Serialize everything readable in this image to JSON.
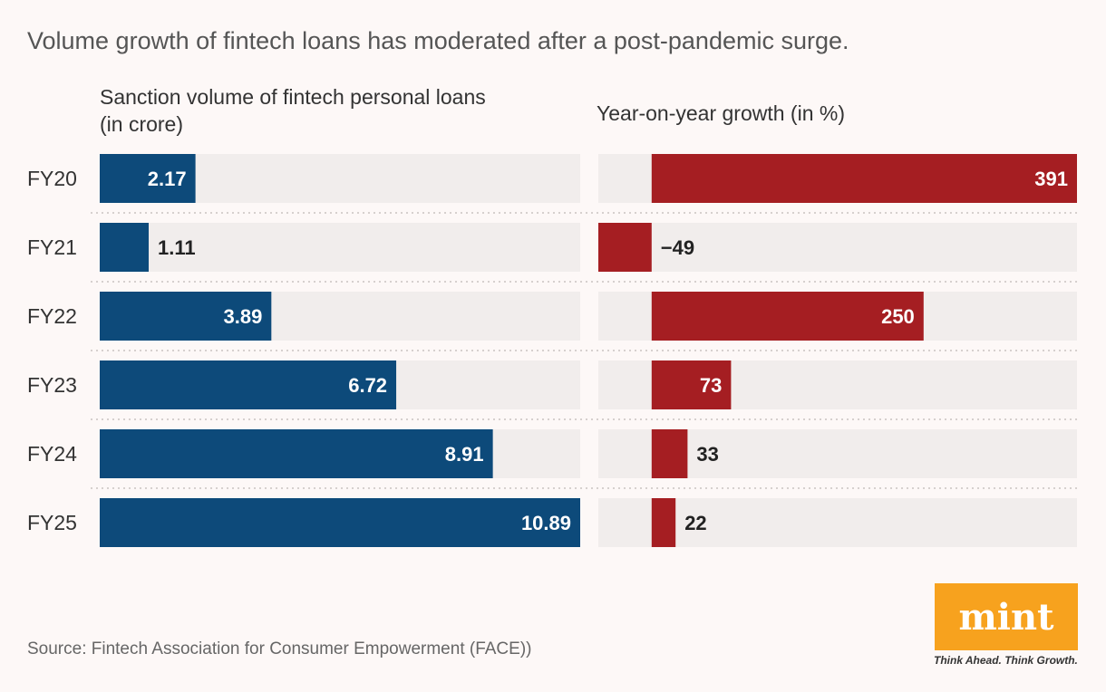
{
  "title": "Volume growth of fintech loans has moderated after a post-pandemic surge.",
  "source": "Source: Fintech Association for Consumer Empowerment (FACE))",
  "logo": {
    "text": "mint",
    "tagline": "Think Ahead. Think Growth."
  },
  "colors": {
    "blue": "#0d4a7a",
    "red": "#a51e22",
    "track": "#f1edec"
  },
  "chart_data": [
    {
      "type": "bar",
      "orientation": "horizontal",
      "title_line1": "Sanction volume of fintech personal loans",
      "title_line2": "(in crore)",
      "categories": [
        "FY20",
        "FY21",
        "FY22",
        "FY23",
        "FY24",
        "FY25"
      ],
      "values": [
        2.17,
        1.11,
        3.89,
        6.72,
        8.91,
        10.89
      ],
      "labels": [
        "2.17",
        "1.11",
        "3.89",
        "6.72",
        "8.91",
        "10.89"
      ],
      "xlim": [
        0,
        10.89
      ]
    },
    {
      "type": "bar",
      "orientation": "horizontal",
      "title": "Year-on-year growth (in %)",
      "categories": [
        "FY20",
        "FY21",
        "FY22",
        "FY23",
        "FY24",
        "FY25"
      ],
      "values": [
        391,
        -49,
        250,
        73,
        33,
        22
      ],
      "labels": [
        "391",
        "−49",
        "250",
        "73",
        "33",
        "22"
      ],
      "xlim": [
        -49,
        391
      ]
    }
  ]
}
